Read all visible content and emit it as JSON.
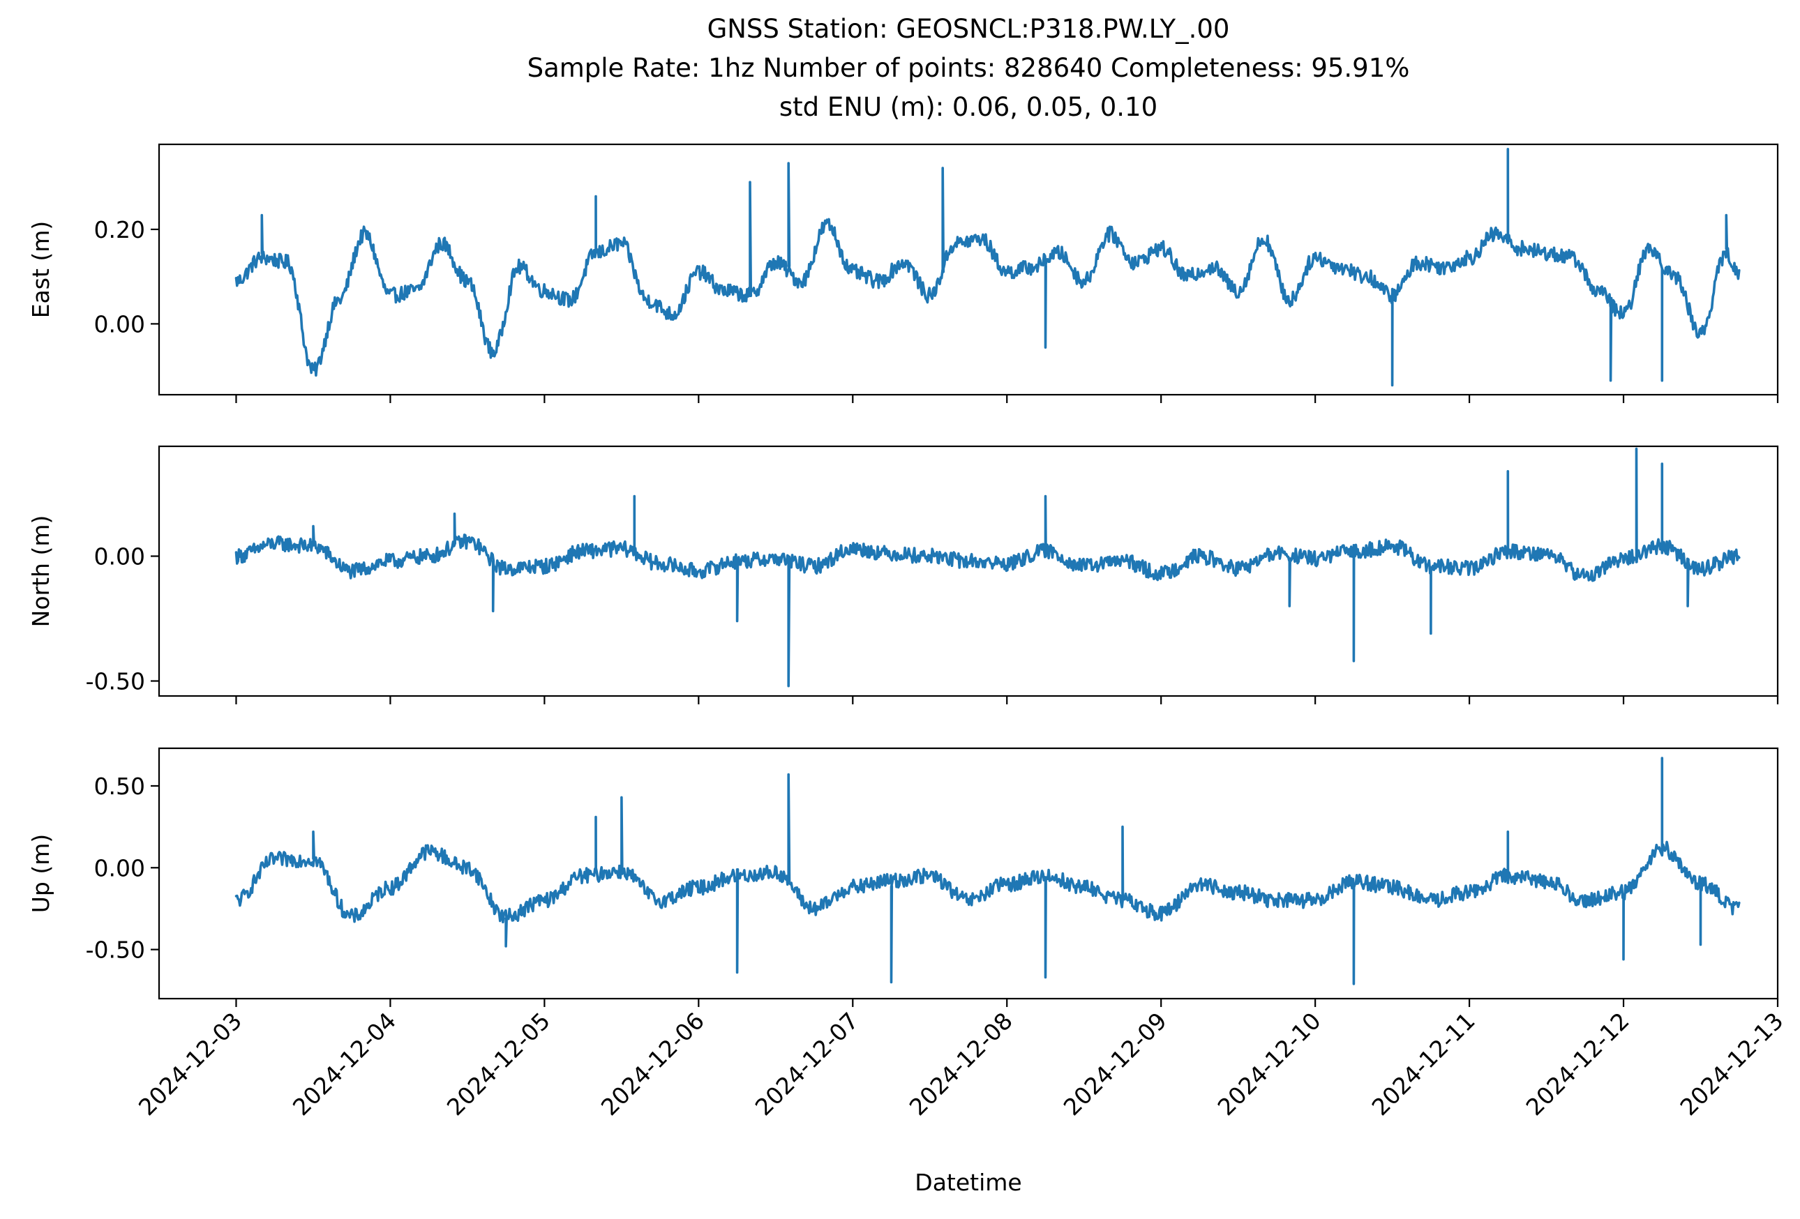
{
  "chart_data": {
    "type": "line",
    "title_lines": [
      "GNSS Station: GEOSNCL:P318.PW.LY_.00",
      "Sample Rate: 1hz   Number of points: 828640    Completeness:  95.91%",
      "std ENU (m):  0.06, 0.05, 0.10"
    ],
    "xlabel": "Datetime",
    "x_ticks": [
      "2024-12-03",
      "2024-12-04",
      "2024-12-05",
      "2024-12-06",
      "2024-12-07",
      "2024-12-08",
      "2024-12-09",
      "2024-12-10",
      "2024-12-11",
      "2024-12-12",
      "2024-12-13"
    ],
    "xlim": [
      "2024-12-02T12:00",
      "2024-12-13T00:00"
    ],
    "series_color": "#1f77b4",
    "panels": [
      {
        "ylabel": "East (m)",
        "ylim": [
          -0.15,
          0.38
        ],
        "y_ticks": [
          {
            "value": 0.2,
            "label": "0.20"
          },
          {
            "value": 0.0,
            "label": "0.00"
          }
        ],
        "x": [
          "2024-12-03T00:00",
          "2024-12-03T04:00",
          "2024-12-03T08:00",
          "2024-12-03T12:00",
          "2024-12-03T16:00",
          "2024-12-03T20:00",
          "2024-12-04T00:00",
          "2024-12-04T04:00",
          "2024-12-04T08:00",
          "2024-12-04T12:00",
          "2024-12-04T16:00",
          "2024-12-04T20:00",
          "2024-12-05T00:00",
          "2024-12-05T04:00",
          "2024-12-05T08:00",
          "2024-12-05T12:00",
          "2024-12-05T16:00",
          "2024-12-05T20:00",
          "2024-12-06T00:00",
          "2024-12-06T04:00",
          "2024-12-06T08:00",
          "2024-12-06T12:00",
          "2024-12-06T16:00",
          "2024-12-06T20:00",
          "2024-12-07T00:00",
          "2024-12-07T04:00",
          "2024-12-07T08:00",
          "2024-12-07T12:00",
          "2024-12-07T16:00",
          "2024-12-07T20:00",
          "2024-12-08T00:00",
          "2024-12-08T04:00",
          "2024-12-08T08:00",
          "2024-12-08T12:00",
          "2024-12-08T16:00",
          "2024-12-08T20:00",
          "2024-12-09T00:00",
          "2024-12-09T04:00",
          "2024-12-09T08:00",
          "2024-12-09T12:00",
          "2024-12-09T16:00",
          "2024-12-09T20:00",
          "2024-12-10T00:00",
          "2024-12-10T04:00",
          "2024-12-10T08:00",
          "2024-12-10T12:00",
          "2024-12-10T16:00",
          "2024-12-10T20:00",
          "2024-12-11T00:00",
          "2024-12-11T04:00",
          "2024-12-11T08:00",
          "2024-12-11T12:00",
          "2024-12-11T16:00",
          "2024-12-11T20:00",
          "2024-12-12T00:00",
          "2024-12-12T04:00",
          "2024-12-12T08:00",
          "2024-12-12T12:00",
          "2024-12-12T16:00",
          "2024-12-12T18:00"
        ],
        "y": [
          0.09,
          0.14,
          0.13,
          -0.1,
          0.05,
          0.19,
          0.06,
          0.07,
          0.17,
          0.09,
          -0.06,
          0.12,
          0.07,
          0.05,
          0.15,
          0.17,
          0.05,
          0.02,
          0.11,
          0.07,
          0.06,
          0.13,
          0.09,
          0.21,
          0.11,
          0.09,
          0.13,
          0.06,
          0.17,
          0.18,
          0.11,
          0.12,
          0.15,
          0.09,
          0.19,
          0.13,
          0.16,
          0.1,
          0.12,
          0.07,
          0.18,
          0.05,
          0.14,
          0.12,
          0.1,
          0.06,
          0.13,
          0.12,
          0.14,
          0.19,
          0.16,
          0.15,
          0.14,
          0.07,
          0.02,
          0.16,
          0.1,
          -0.02,
          0.15,
          0.1
        ],
        "spikes": [
          {
            "x": "2024-12-03T04:00",
            "y": 0.23
          },
          {
            "x": "2024-12-05T08:00",
            "y": 0.27
          },
          {
            "x": "2024-12-06T08:00",
            "y": 0.3
          },
          {
            "x": "2024-12-06T14:00",
            "y": 0.34
          },
          {
            "x": "2024-12-07T14:00",
            "y": 0.33
          },
          {
            "x": "2024-12-08T06:00",
            "y": -0.05
          },
          {
            "x": "2024-12-10T12:00",
            "y": -0.13
          },
          {
            "x": "2024-12-11T06:00",
            "y": 0.37
          },
          {
            "x": "2024-12-11T22:00",
            "y": -0.12
          },
          {
            "x": "2024-12-12T06:00",
            "y": -0.12
          },
          {
            "x": "2024-12-12T16:00",
            "y": 0.23
          }
        ]
      },
      {
        "ylabel": "North (m)",
        "ylim": [
          -0.56,
          0.44
        ],
        "y_ticks": [
          {
            "value": 0.0,
            "label": "0.00"
          },
          {
            "value": -0.5,
            "label": "-0.50"
          }
        ],
        "x": [
          "2024-12-03T00:00",
          "2024-12-03T06:00",
          "2024-12-03T12:00",
          "2024-12-03T18:00",
          "2024-12-04T00:00",
          "2024-12-04T06:00",
          "2024-12-04T12:00",
          "2024-12-04T18:00",
          "2024-12-05T00:00",
          "2024-12-05T06:00",
          "2024-12-05T12:00",
          "2024-12-05T18:00",
          "2024-12-06T00:00",
          "2024-12-06T06:00",
          "2024-12-06T12:00",
          "2024-12-06T18:00",
          "2024-12-07T00:00",
          "2024-12-07T06:00",
          "2024-12-07T12:00",
          "2024-12-07T18:00",
          "2024-12-08T00:00",
          "2024-12-08T06:00",
          "2024-12-08T12:00",
          "2024-12-08T18:00",
          "2024-12-09T00:00",
          "2024-12-09T06:00",
          "2024-12-09T12:00",
          "2024-12-09T18:00",
          "2024-12-10T00:00",
          "2024-12-10T06:00",
          "2024-12-10T12:00",
          "2024-12-10T18:00",
          "2024-12-11T00:00",
          "2024-12-11T06:00",
          "2024-12-11T12:00",
          "2024-12-11T18:00",
          "2024-12-12T00:00",
          "2024-12-12T06:00",
          "2024-12-12T12:00",
          "2024-12-12T18:00"
        ],
        "y": [
          0.0,
          0.05,
          0.04,
          -0.06,
          -0.02,
          0.0,
          0.06,
          -0.05,
          -0.04,
          0.02,
          0.03,
          -0.03,
          -0.06,
          -0.02,
          -0.01,
          -0.04,
          0.03,
          0.01,
          0.0,
          -0.02,
          -0.03,
          0.02,
          -0.04,
          -0.02,
          -0.07,
          0.0,
          -0.05,
          0.01,
          -0.01,
          0.02,
          0.04,
          -0.04,
          -0.05,
          0.02,
          0.01,
          -0.08,
          -0.01,
          0.04,
          -0.05,
          0.0
        ],
        "spikes": [
          {
            "x": "2024-12-03T12:00",
            "y": 0.12
          },
          {
            "x": "2024-12-04T10:00",
            "y": 0.17
          },
          {
            "x": "2024-12-04T16:00",
            "y": -0.22
          },
          {
            "x": "2024-12-05T14:00",
            "y": 0.24
          },
          {
            "x": "2024-12-06T06:00",
            "y": -0.26
          },
          {
            "x": "2024-12-06T14:00",
            "y": -0.52
          },
          {
            "x": "2024-12-08T06:00",
            "y": 0.24
          },
          {
            "x": "2024-12-09T20:00",
            "y": -0.2
          },
          {
            "x": "2024-12-10T06:00",
            "y": -0.42
          },
          {
            "x": "2024-12-10T18:00",
            "y": -0.31
          },
          {
            "x": "2024-12-11T06:00",
            "y": 0.34
          },
          {
            "x": "2024-12-12T02:00",
            "y": 0.43
          },
          {
            "x": "2024-12-12T06:00",
            "y": 0.37
          },
          {
            "x": "2024-12-12T10:00",
            "y": -0.2
          }
        ]
      },
      {
        "ylabel": "Up (m)",
        "ylim": [
          -0.8,
          0.73
        ],
        "y_ticks": [
          {
            "value": 0.5,
            "label": "0.50"
          },
          {
            "value": 0.0,
            "label": "0.00"
          },
          {
            "value": -0.5,
            "label": "-0.50"
          }
        ],
        "x": [
          "2024-12-03T00:00",
          "2024-12-03T06:00",
          "2024-12-03T12:00",
          "2024-12-03T18:00",
          "2024-12-04T00:00",
          "2024-12-04T06:00",
          "2024-12-04T12:00",
          "2024-12-04T18:00",
          "2024-12-05T00:00",
          "2024-12-05T06:00",
          "2024-12-05T12:00",
          "2024-12-05T18:00",
          "2024-12-06T00:00",
          "2024-12-06T06:00",
          "2024-12-06T12:00",
          "2024-12-06T18:00",
          "2024-12-07T00:00",
          "2024-12-07T06:00",
          "2024-12-07T12:00",
          "2024-12-07T18:00",
          "2024-12-08T00:00",
          "2024-12-08T06:00",
          "2024-12-08T12:00",
          "2024-12-08T18:00",
          "2024-12-09T00:00",
          "2024-12-09T06:00",
          "2024-12-09T12:00",
          "2024-12-09T18:00",
          "2024-12-10T00:00",
          "2024-12-10T06:00",
          "2024-12-10T12:00",
          "2024-12-10T18:00",
          "2024-12-11T00:00",
          "2024-12-11T06:00",
          "2024-12-11T12:00",
          "2024-12-11T18:00",
          "2024-12-12T00:00",
          "2024-12-12T06:00",
          "2024-12-12T12:00",
          "2024-12-12T18:00"
        ],
        "y": [
          -0.2,
          0.05,
          0.05,
          -0.3,
          -0.12,
          0.1,
          0.0,
          -0.3,
          -0.2,
          -0.05,
          -0.02,
          -0.2,
          -0.12,
          -0.05,
          -0.03,
          -0.25,
          -0.12,
          -0.08,
          -0.05,
          -0.2,
          -0.1,
          -0.05,
          -0.12,
          -0.2,
          -0.28,
          -0.1,
          -0.15,
          -0.2,
          -0.2,
          -0.08,
          -0.12,
          -0.2,
          -0.15,
          -0.05,
          -0.08,
          -0.2,
          -0.15,
          0.12,
          -0.1,
          -0.25
        ],
        "spikes": [
          {
            "x": "2024-12-03T12:00",
            "y": 0.22
          },
          {
            "x": "2024-12-04T18:00",
            "y": -0.48
          },
          {
            "x": "2024-12-05T08:00",
            "y": 0.31
          },
          {
            "x": "2024-12-05T12:00",
            "y": 0.43
          },
          {
            "x": "2024-12-06T06:00",
            "y": -0.64
          },
          {
            "x": "2024-12-06T14:00",
            "y": 0.57
          },
          {
            "x": "2024-12-07T06:00",
            "y": -0.7
          },
          {
            "x": "2024-12-08T06:00",
            "y": -0.67
          },
          {
            "x": "2024-12-08T18:00",
            "y": 0.25
          },
          {
            "x": "2024-12-10T06:00",
            "y": -0.71
          },
          {
            "x": "2024-12-11T06:00",
            "y": 0.22
          },
          {
            "x": "2024-12-12T00:00",
            "y": -0.56
          },
          {
            "x": "2024-12-12T06:00",
            "y": 0.67
          },
          {
            "x": "2024-12-12T12:00",
            "y": -0.47
          }
        ]
      }
    ]
  }
}
